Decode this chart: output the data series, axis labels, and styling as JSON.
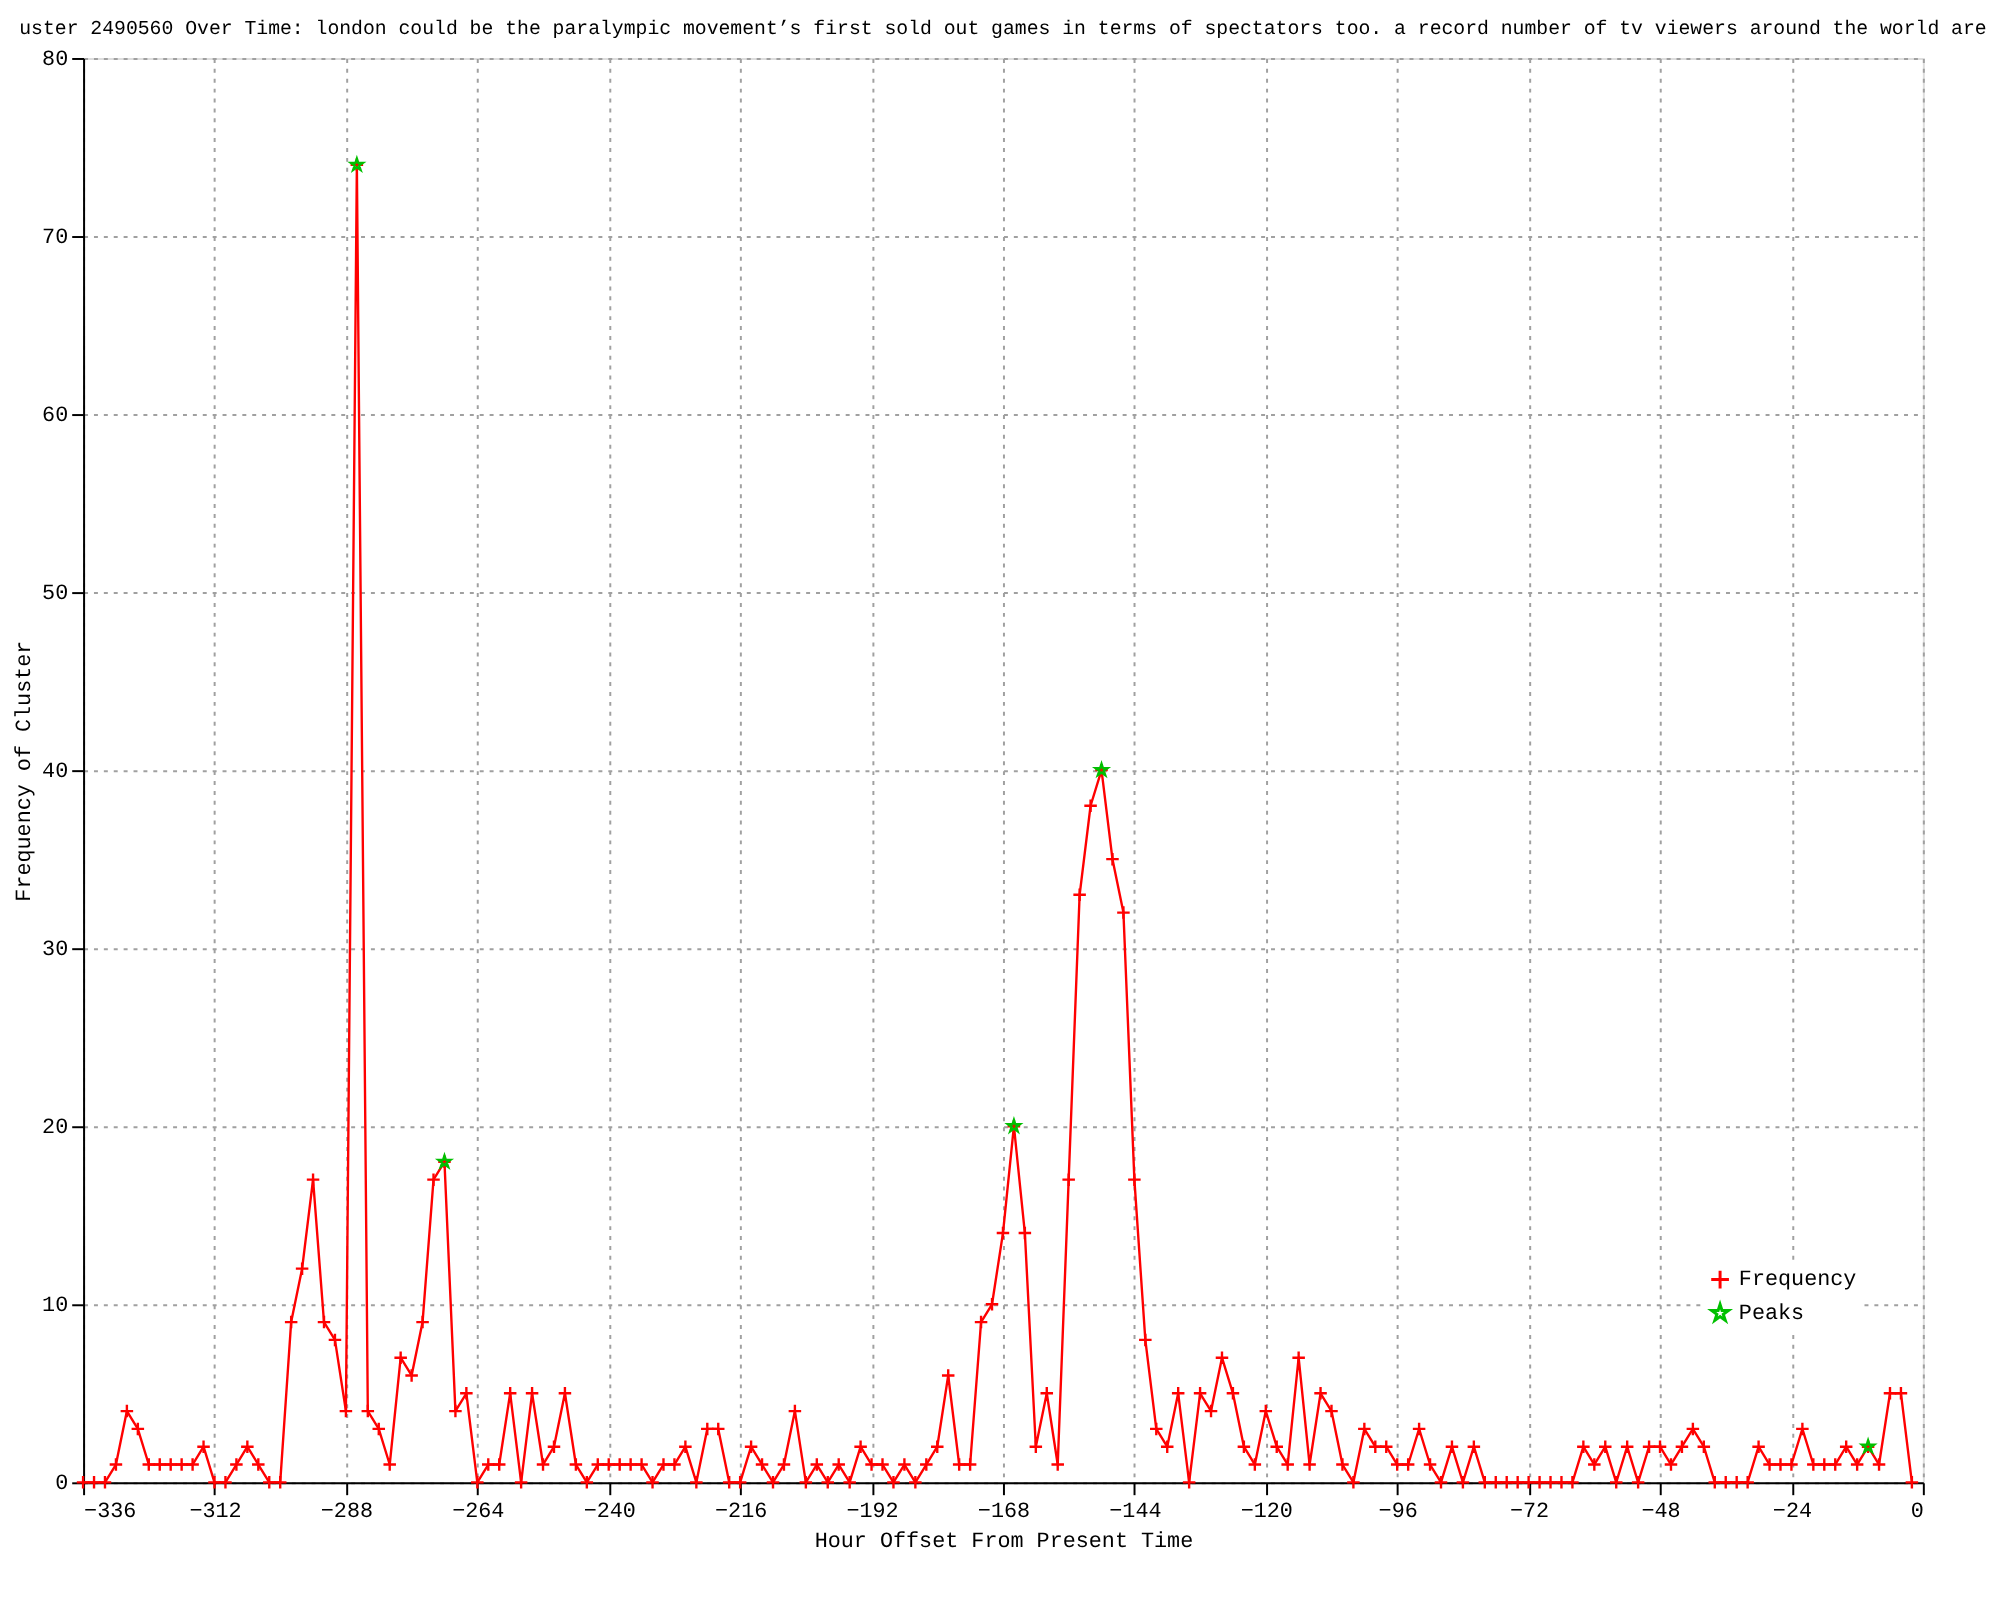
{
  "chart_data": {
    "type": "line",
    "title": "uster 2490560 Over Time: london could be the paralympic movement’s first sold out games in terms of spectators too. a record number of tv viewers around the world are",
    "xlabel": "Hour Offset From Present Time",
    "ylabel": "Frequency of Cluster",
    "x": [
      -336,
      -334,
      -332,
      -330,
      -328,
      -326,
      -324,
      -322,
      -320,
      -318,
      -316,
      -314,
      -312,
      -310,
      -308,
      -306,
      -304,
      -302,
      -300,
      -298,
      -296,
      -294,
      -292,
      -290,
      -288,
      -286,
      -284,
      -282,
      -280,
      -278,
      -276,
      -274,
      -272,
      -270,
      -268,
      -266,
      -264,
      -262,
      -260,
      -258,
      -256,
      -254,
      -252,
      -250,
      -248,
      -246,
      -244,
      -242,
      -240,
      -238,
      -236,
      -234,
      -232,
      -230,
      -228,
      -226,
      -224,
      -222,
      -220,
      -218,
      -216,
      -214,
      -212,
      -210,
      -208,
      -206,
      -204,
      -202,
      -200,
      -198,
      -196,
      -194,
      -192,
      -190,
      -188,
      -186,
      -184,
      -182,
      -180,
      -178,
      -176,
      -174,
      -172,
      -170,
      -168,
      -166,
      -164,
      -162,
      -160,
      -158,
      -156,
      -154,
      -152,
      -150,
      -148,
      -146,
      -144,
      -142,
      -140,
      -138,
      -136,
      -134,
      -132,
      -130,
      -128,
      -126,
      -124,
      -122,
      -120,
      -118,
      -116,
      -114,
      -112,
      -110,
      -108,
      -106,
      -104,
      -102,
      -100,
      -98,
      -96,
      -94,
      -92,
      -90,
      -88,
      -86,
      -84,
      -82,
      -80,
      -78,
      -76,
      -74,
      -72,
      -70,
      -68,
      -66,
      -64,
      -62,
      -60,
      -58,
      -56,
      -54,
      -52,
      -50,
      -48,
      -46,
      -44,
      -42,
      -40,
      -38,
      -36,
      -34,
      -32,
      -30,
      -28,
      -26,
      -24,
      -22,
      -20,
      -18,
      -16,
      -14,
      -12,
      -10,
      -8,
      -6,
      -4,
      -2
    ],
    "series": [
      {
        "name": "Frequency",
        "color": "#ff0000",
        "marker": "cross",
        "values": [
          0,
          0,
          0,
          1,
          4,
          3,
          1,
          1,
          1,
          1,
          1,
          2,
          0,
          0,
          1,
          2,
          1,
          0,
          0,
          9,
          12,
          17,
          9,
          8,
          4,
          74,
          4,
          3,
          1,
          7,
          6,
          9,
          17,
          18,
          4,
          5,
          0,
          1,
          1,
          5,
          0,
          5,
          1,
          2,
          5,
          1,
          0,
          1,
          1,
          1,
          1,
          1,
          0,
          1,
          1,
          2,
          0,
          3,
          3,
          0,
          0,
          2,
          1,
          0,
          1,
          4,
          0,
          1,
          0,
          1,
          0,
          2,
          1,
          1,
          0,
          1,
          0,
          1,
          2,
          6,
          1,
          1,
          9,
          10,
          14,
          20,
          14,
          2,
          5,
          1,
          17,
          33,
          38,
          40,
          35,
          32,
          17,
          8,
          3,
          2,
          5,
          0,
          5,
          4,
          7,
          5,
          2,
          1,
          4,
          2,
          1,
          7,
          1,
          5,
          4,
          1,
          0,
          3,
          2,
          2,
          1,
          1,
          3,
          1,
          0,
          2,
          0,
          2,
          0,
          0,
          0,
          0,
          0,
          0,
          0,
          0,
          0,
          2,
          1,
          2,
          0,
          2,
          0,
          2,
          2,
          1,
          2,
          3,
          2,
          0,
          0,
          0,
          0,
          2,
          1,
          1,
          1,
          3,
          1,
          1,
          1,
          2,
          1,
          2,
          1,
          5,
          5,
          0
        ]
      },
      {
        "name": "Peaks",
        "type": "scatter",
        "color": "#00c000",
        "marker": "star",
        "x": [
          -286,
          -270,
          -166,
          -150,
          -10
        ],
        "values": [
          74,
          18,
          20,
          40,
          2
        ]
      }
    ],
    "xlim": [
      -336,
      0
    ],
    "xticks": [
      -336,
      -312,
      -288,
      -264,
      -240,
      -216,
      -192,
      -168,
      -144,
      -120,
      -96,
      -72,
      -48,
      -24,
      0
    ],
    "ylim": [
      0,
      80
    ],
    "yticks": [
      0,
      10,
      20,
      30,
      40,
      50,
      60,
      70,
      80
    ],
    "grid": true,
    "legend": "bottom right"
  }
}
